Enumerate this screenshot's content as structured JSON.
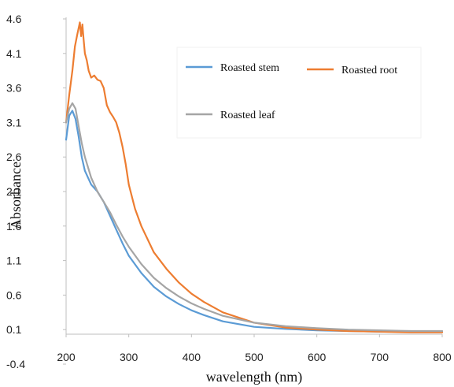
{
  "chart_data": {
    "type": "line",
    "title": "",
    "xlabel": "wavelength (nm)",
    "ylabel": "Absorbance",
    "xlim": [
      200,
      800
    ],
    "ylim": [
      -0.4,
      4.6
    ],
    "x_ticks": [
      "200",
      "300",
      "400",
      "500",
      "600",
      "700",
      "800"
    ],
    "y_ticks": [
      "4.6",
      "4.1",
      "3.6",
      "3.1",
      "2.6",
      "2.1",
      "1.6",
      "1.1",
      "0.6",
      "0.1",
      "-0.4"
    ],
    "grid": false,
    "legend_position": "top-right",
    "series": [
      {
        "name": "Roasted stem",
        "color": "#5b9bd5",
        "x": [
          200,
          205,
          210,
          215,
          220,
          225,
          230,
          240,
          250,
          260,
          270,
          280,
          290,
          300,
          320,
          340,
          360,
          380,
          400,
          420,
          450,
          500,
          550,
          600,
          650,
          700,
          750,
          800
        ],
        "y": [
          2.85,
          3.2,
          3.27,
          3.15,
          2.9,
          2.6,
          2.4,
          2.2,
          2.1,
          1.95,
          1.75,
          1.55,
          1.35,
          1.17,
          0.92,
          0.72,
          0.58,
          0.47,
          0.38,
          0.31,
          0.22,
          0.14,
          0.11,
          0.09,
          0.08,
          0.07,
          0.07,
          0.07
        ]
      },
      {
        "name": "Roasted root",
        "color": "#ed7d31",
        "x": [
          200,
          205,
          210,
          214,
          218,
          222,
          224,
          226,
          228,
          230,
          233,
          236,
          240,
          245,
          250,
          255,
          260,
          265,
          270,
          275,
          280,
          285,
          290,
          295,
          300,
          310,
          320,
          340,
          360,
          380,
          400,
          420,
          450,
          500,
          550,
          600,
          650,
          700,
          750,
          800
        ],
        "y": [
          3.1,
          3.5,
          3.85,
          4.2,
          4.38,
          4.55,
          4.35,
          4.52,
          4.3,
          4.1,
          4.0,
          3.85,
          3.75,
          3.78,
          3.72,
          3.7,
          3.6,
          3.35,
          3.25,
          3.18,
          3.1,
          2.95,
          2.75,
          2.5,
          2.2,
          1.85,
          1.6,
          1.22,
          0.98,
          0.78,
          0.62,
          0.5,
          0.35,
          0.2,
          0.13,
          0.1,
          0.08,
          0.07,
          0.06,
          0.06
        ]
      },
      {
        "name": "Roasted leaf",
        "color": "#a5a5a5",
        "x": [
          200,
          205,
          210,
          215,
          220,
          225,
          230,
          240,
          250,
          260,
          270,
          280,
          290,
          300,
          320,
          340,
          360,
          380,
          400,
          420,
          450,
          500,
          550,
          600,
          650,
          700,
          750,
          800
        ],
        "y": [
          3.1,
          3.3,
          3.38,
          3.3,
          3.05,
          2.8,
          2.6,
          2.3,
          2.1,
          1.95,
          1.8,
          1.62,
          1.45,
          1.3,
          1.05,
          0.85,
          0.7,
          0.58,
          0.48,
          0.4,
          0.3,
          0.2,
          0.15,
          0.12,
          0.1,
          0.09,
          0.08,
          0.08
        ]
      }
    ]
  }
}
